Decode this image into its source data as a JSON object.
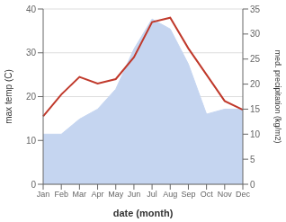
{
  "chart_data": {
    "type": "line",
    "categories": [
      "Jan",
      "Feb",
      "Mar",
      "Apr",
      "May",
      "Jun",
      "Jul",
      "Aug",
      "Sep",
      "Oct",
      "Nov",
      "Dec"
    ],
    "series": [
      {
        "type": "area",
        "axis": "y2",
        "color": "#c5d5f0",
        "values": [
          10,
          10,
          13,
          15,
          19,
          27,
          33,
          31,
          24,
          14,
          15,
          15
        ]
      },
      {
        "type": "line",
        "color": "#c0392b",
        "values": [
          15.5,
          20.5,
          24.5,
          23.0,
          24.0,
          29.0,
          37.0,
          38.0,
          31.0,
          25.0,
          19.0,
          17.0
        ]
      }
    ],
    "xlabel": "date (month)",
    "ylabel": "max temp (C)",
    "y2label": "med. precipitation (kg/m2)",
    "ylim": [
      0,
      40
    ],
    "yticks": [
      0,
      10,
      20,
      30,
      40
    ],
    "y2lim": [
      0,
      35
    ],
    "y2ticks": [
      0,
      5,
      10,
      15,
      20,
      25,
      30,
      35
    ],
    "grid": true
  }
}
